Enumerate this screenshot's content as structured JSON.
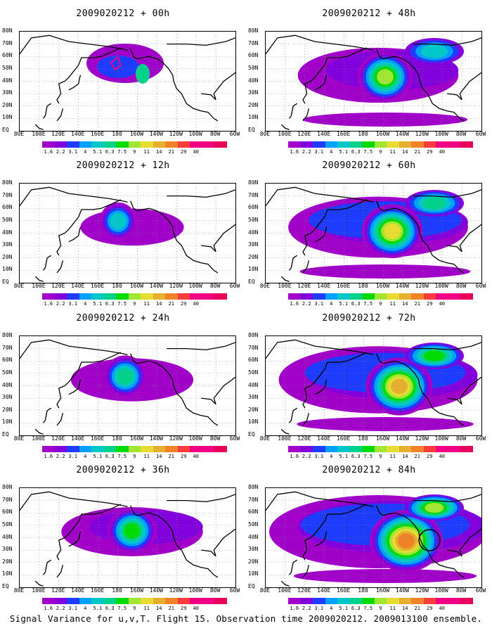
{
  "panels": [
    {
      "title": "2009020212 + 00h",
      "level": 0
    },
    {
      "title": "2009020212 + 12h",
      "level": 1
    },
    {
      "title": "2009020212 + 24h",
      "level": 2
    },
    {
      "title": "2009020212 + 36h",
      "level": 3
    },
    {
      "title": "2009020212 + 48h",
      "level": 4
    },
    {
      "title": "2009020212 + 60h",
      "level": 5
    },
    {
      "title": "2009020212 + 72h",
      "level": 6
    },
    {
      "title": "2009020212 + 84h",
      "level": 7
    }
  ],
  "lat_labels": [
    "80N",
    "70N",
    "60N",
    "50N",
    "40N",
    "30N",
    "20N",
    "10N",
    "EQ"
  ],
  "lon_labels": [
    "80E",
    "100E",
    "120E",
    "140E",
    "160E",
    "180",
    "160W",
    "140W",
    "120W",
    "100W",
    "80W",
    "60W"
  ],
  "colorbar": {
    "labels": [
      "1.6",
      "2.2",
      "3.1",
      "4",
      "5.1",
      "6.3",
      "7.5",
      "9",
      "11",
      "14",
      "21",
      "29",
      "40"
    ],
    "colors": [
      "#a000c8",
      "#8200dc",
      "#1e3cff",
      "#00a0ff",
      "#00c8c8",
      "#00d28c",
      "#00dc00",
      "#a0e632",
      "#e6dc32",
      "#e6af2d",
      "#f08228",
      "#fa3c3c",
      "#f00082"
    ]
  },
  "caption": "Signal Variance for u,v,T. Flight 15. Observation time 2009020212. 2009013100 ensemble."
}
